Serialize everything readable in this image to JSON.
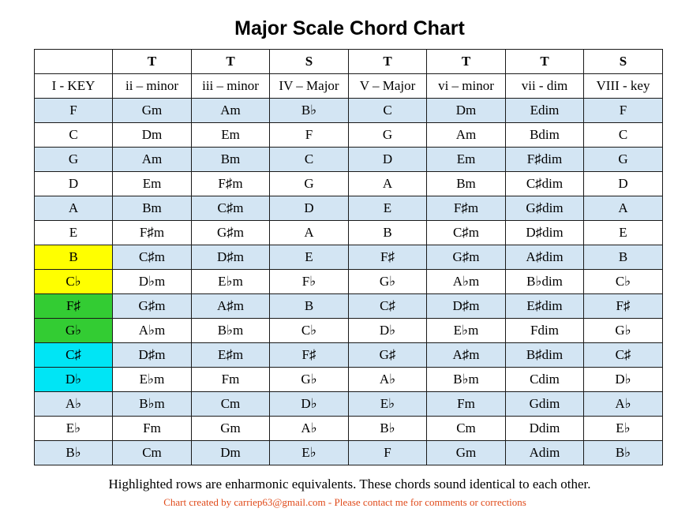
{
  "title": "Major Scale Chord Chart",
  "header": {
    "types": [
      "",
      "T",
      "T",
      "S",
      "T",
      "T",
      "T",
      "S"
    ],
    "degrees": [
      "I - KEY",
      "ii – minor",
      "iii – minor",
      "IV – Major",
      "V – Major",
      "vi – minor",
      "vii - dim",
      "VIII - key"
    ]
  },
  "rows": [
    [
      "F",
      "Gm",
      "Am",
      "B♭",
      "C",
      "Dm",
      "Edim",
      "F"
    ],
    [
      "C",
      "Dm",
      "Em",
      "F",
      "G",
      "Am",
      "Bdim",
      "C"
    ],
    [
      "G",
      "Am",
      "Bm",
      "C",
      "D",
      "Em",
      "F♯dim",
      "G"
    ],
    [
      "D",
      "Em",
      "F♯m",
      "G",
      "A",
      "Bm",
      "C♯dim",
      "D"
    ],
    [
      "A",
      "Bm",
      "C♯m",
      "D",
      "E",
      "F♯m",
      "G♯dim",
      "A"
    ],
    [
      "E",
      "F♯m",
      "G♯m",
      "A",
      "B",
      "C♯m",
      "D♯dim",
      "E"
    ],
    [
      "B",
      "C♯m",
      "D♯m",
      "E",
      "F♯",
      "G♯m",
      "A♯dim",
      "B"
    ],
    [
      "C♭",
      "D♭m",
      "E♭m",
      "F♭",
      "G♭",
      "A♭m",
      "B♭dim",
      "C♭"
    ],
    [
      "F♯",
      "G♯m",
      "A♯m",
      "B",
      "C♯",
      "D♯m",
      "E♯dim",
      "F♯"
    ],
    [
      "G♭",
      "A♭m",
      "B♭m",
      "C♭",
      "D♭",
      "E♭m",
      "Fdim",
      "G♭"
    ],
    [
      "C♯",
      "D♯m",
      "E♯m",
      "F♯",
      "G♯",
      "A♯m",
      "B♯dim",
      "C♯"
    ],
    [
      "D♭",
      "E♭m",
      "Fm",
      "G♭",
      "A♭",
      "B♭m",
      "Cdim",
      "D♭"
    ],
    [
      "A♭",
      "B♭m",
      "Cm",
      "D♭",
      "E♭",
      "Fm",
      "Gdim",
      "A♭"
    ],
    [
      "E♭",
      "Fm",
      "Gm",
      "A♭",
      "B♭",
      "Cm",
      "Ddim",
      "E♭"
    ],
    [
      "B♭",
      "Cm",
      "Dm",
      "E♭",
      "F",
      "Gm",
      "Adim",
      "B♭"
    ]
  ],
  "colors": {
    "row_shade": "#d3e5f3",
    "enharmonic_1": "#ffff00",
    "enharmonic_2": "#33cc33",
    "enharmonic_3": "#00e5f5",
    "credit_text": "#e04a1a"
  },
  "note": "Highlighted rows are enharmonic equivalents.  These chords sound identical to each other.",
  "credit": "Chart created by carriep63@gmail.com - Please contact me for comments or corrections"
}
